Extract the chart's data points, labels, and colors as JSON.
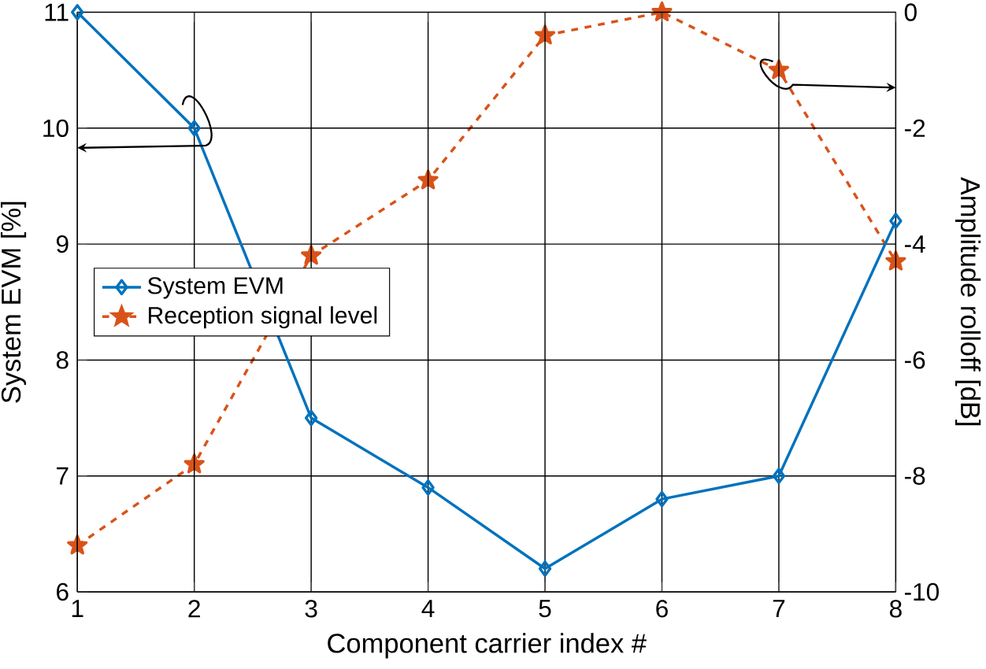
{
  "chart_data": {
    "type": "line",
    "xlabel": "Component carrier index #",
    "ylabel": "System EVM [%]",
    "y2label": "Amplitude rolloff [dB]",
    "x": [
      1,
      2,
      3,
      4,
      5,
      6,
      7,
      8
    ],
    "xlim": [
      1,
      8
    ],
    "xticks": [
      1,
      2,
      3,
      4,
      5,
      6,
      7,
      8
    ],
    "ylim": [
      6,
      11
    ],
    "yticks": [
      6,
      7,
      8,
      9,
      10,
      11
    ],
    "y2lim": [
      -10,
      0
    ],
    "y2ticks": [
      -10,
      -8,
      -6,
      -4,
      -2,
      0
    ],
    "grid": true,
    "legend": "left",
    "series": [
      {
        "name": "System EVM",
        "color": "#0072bd",
        "marker": "diamond",
        "line_style": "solid",
        "values": [
          11,
          10,
          7.5,
          6.9,
          6.2,
          6.8,
          7.0,
          9.2
        ]
      },
      {
        "name": "Reception signal level",
        "color": "#d95319",
        "marker": "star",
        "line_style": "dashed",
        "axis": "y2",
        "values": [
          -9.2,
          -7.8,
          -4.2,
          -2.9,
          -0.4,
          0,
          -1.0,
          -4.3
        ]
      }
    ]
  }
}
